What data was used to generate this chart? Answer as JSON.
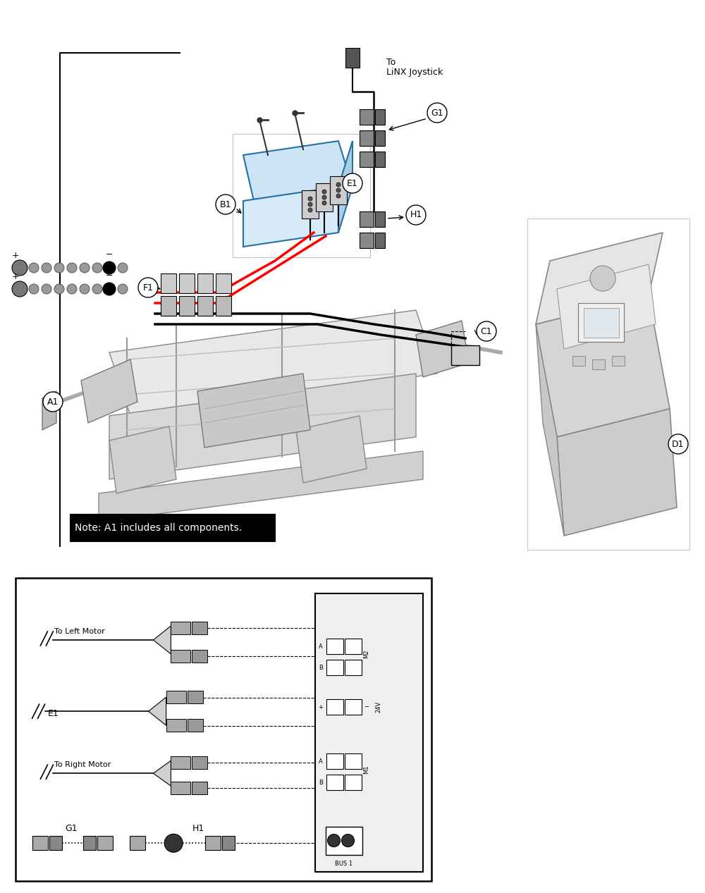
{
  "bg_color": "#ffffff",
  "note_text": "Note: A1 includes all components.",
  "joystick_text_line1": "To",
  "joystick_text_line2": "LiNX Joystick"
}
